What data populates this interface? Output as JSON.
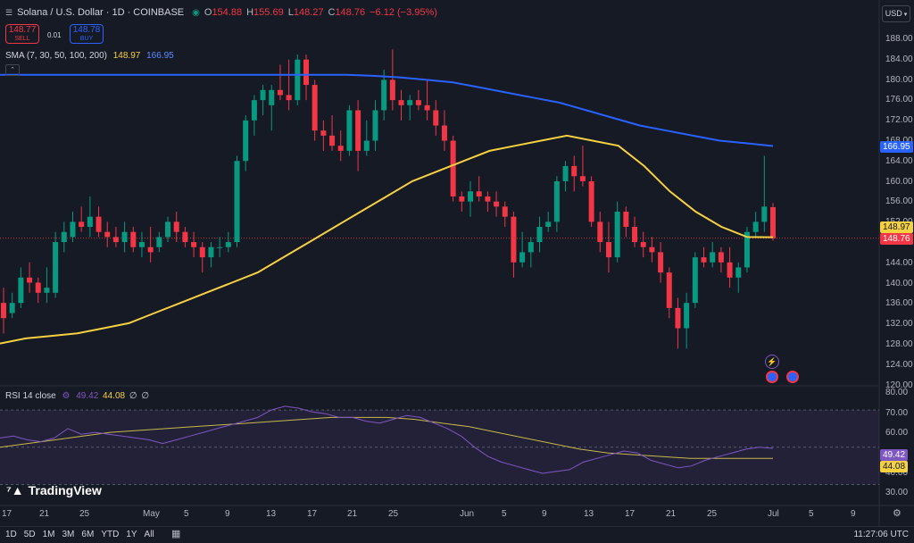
{
  "header": {
    "title": "Solana / U.S. Dollar · 1D · COINBASE",
    "ohlc": {
      "o_label": "O",
      "o": "154.88",
      "h_label": "H",
      "h": "155.69",
      "l_label": "L",
      "l": "148.27",
      "c_label": "C",
      "c": "148.76",
      "change": "−6.12 (−3.95%)"
    },
    "sell_price": "148.77",
    "sell_label": "SELL",
    "spread": "0.01",
    "buy_price": "148.78",
    "buy_label": "BUY",
    "currency": "USD"
  },
  "sma": {
    "label": "SMA (7, 30, 50, 100, 200)",
    "val1": "148.97",
    "val2": "166.95",
    "color1": "#f5d142",
    "color2": "#2962ff"
  },
  "rsi": {
    "label": "RSI 14 close",
    "val1": "49.42",
    "val2": "44.08",
    "null1": "∅",
    "null2": "∅",
    "line_color": "#7e57c2",
    "ma_color": "#c7b84a",
    "tag1": "49.42",
    "tag2": "44.08"
  },
  "price_axis": [
    "188.00",
    "184.00",
    "180.00",
    "176.00",
    "172.00",
    "168.00",
    "164.00",
    "160.00",
    "156.00",
    "152.00",
    "148.00",
    "144.00",
    "140.00",
    "136.00",
    "132.00",
    "128.00",
    "124.00",
    "120.00"
  ],
  "price_tags": {
    "sma1": "148.97",
    "sma2": "166.95",
    "last": "148.76"
  },
  "rsi_axis": [
    "80.00",
    "70.00",
    "60.00",
    "50.00",
    "40.00",
    "30.00"
  ],
  "time_axis": [
    "17",
    "21",
    "25",
    "May",
    "5",
    "9",
    "13",
    "17",
    "21",
    "25",
    "Jun",
    "5",
    "9",
    "13",
    "17",
    "21",
    "25",
    "Jul",
    "5",
    "9"
  ],
  "timeframes": [
    "1D",
    "5D",
    "1M",
    "3M",
    "6M",
    "YTD",
    "1Y",
    "All"
  ],
  "clock": "11:27:06 UTC",
  "logo_text": "TradingView",
  "colors": {
    "up": "#089981",
    "down": "#f23645",
    "bg": "#161a25"
  },
  "chart_data": {
    "type": "candlestick",
    "candles": [
      {
        "o": 136,
        "h": 139,
        "l": 130,
        "c": 133
      },
      {
        "o": 134,
        "h": 138,
        "l": 133,
        "c": 136
      },
      {
        "o": 136,
        "h": 143,
        "l": 135,
        "c": 141
      },
      {
        "o": 141,
        "h": 144,
        "l": 138,
        "c": 140
      },
      {
        "o": 140,
        "h": 141,
        "l": 136,
        "c": 138
      },
      {
        "o": 138,
        "h": 143,
        "l": 136,
        "c": 139
      },
      {
        "o": 138,
        "h": 150,
        "l": 137,
        "c": 148
      },
      {
        "o": 148,
        "h": 152,
        "l": 146,
        "c": 150
      },
      {
        "o": 149,
        "h": 154,
        "l": 148,
        "c": 152
      },
      {
        "o": 152,
        "h": 155,
        "l": 150,
        "c": 151
      },
      {
        "o": 151,
        "h": 157,
        "l": 149,
        "c": 153
      },
      {
        "o": 153,
        "h": 155,
        "l": 149,
        "c": 150
      },
      {
        "o": 150,
        "h": 152,
        "l": 147,
        "c": 149
      },
      {
        "o": 149,
        "h": 151,
        "l": 147,
        "c": 148
      },
      {
        "o": 148,
        "h": 152,
        "l": 146,
        "c": 150
      },
      {
        "o": 150,
        "h": 151,
        "l": 146,
        "c": 147
      },
      {
        "o": 147,
        "h": 150,
        "l": 145,
        "c": 148
      },
      {
        "o": 147,
        "h": 151,
        "l": 144,
        "c": 146
      },
      {
        "o": 147,
        "h": 150,
        "l": 146,
        "c": 149
      },
      {
        "o": 149,
        "h": 153,
        "l": 148,
        "c": 152
      },
      {
        "o": 152,
        "h": 154,
        "l": 148,
        "c": 150
      },
      {
        "o": 150,
        "h": 151,
        "l": 147,
        "c": 148
      },
      {
        "o": 148,
        "h": 150,
        "l": 145,
        "c": 147
      },
      {
        "o": 147,
        "h": 148,
        "l": 142,
        "c": 145
      },
      {
        "o": 145,
        "h": 148,
        "l": 143,
        "c": 147
      },
      {
        "o": 147,
        "h": 149,
        "l": 145,
        "c": 147
      },
      {
        "o": 147,
        "h": 150,
        "l": 146,
        "c": 148
      },
      {
        "o": 148,
        "h": 165,
        "l": 147,
        "c": 164
      },
      {
        "o": 164,
        "h": 173,
        "l": 162,
        "c": 172
      },
      {
        "o": 172,
        "h": 177,
        "l": 169,
        "c": 176
      },
      {
        "o": 176,
        "h": 179,
        "l": 173,
        "c": 178
      },
      {
        "o": 175,
        "h": 179,
        "l": 170,
        "c": 178
      },
      {
        "o": 178,
        "h": 183,
        "l": 176,
        "c": 177
      },
      {
        "o": 177,
        "h": 184,
        "l": 174,
        "c": 176
      },
      {
        "o": 176,
        "h": 185,
        "l": 175,
        "c": 184
      },
      {
        "o": 184,
        "h": 185,
        "l": 176,
        "c": 179
      },
      {
        "o": 179,
        "h": 180,
        "l": 168,
        "c": 170
      },
      {
        "o": 170,
        "h": 172,
        "l": 166,
        "c": 169
      },
      {
        "o": 169,
        "h": 173,
        "l": 166,
        "c": 167
      },
      {
        "o": 167,
        "h": 170,
        "l": 164,
        "c": 166
      },
      {
        "o": 166,
        "h": 175,
        "l": 165,
        "c": 174
      },
      {
        "o": 174,
        "h": 176,
        "l": 162,
        "c": 166
      },
      {
        "o": 166,
        "h": 172,
        "l": 165,
        "c": 168
      },
      {
        "o": 168,
        "h": 176,
        "l": 166,
        "c": 174
      },
      {
        "o": 174,
        "h": 182,
        "l": 172,
        "c": 180
      },
      {
        "o": 180,
        "h": 186,
        "l": 174,
        "c": 176
      },
      {
        "o": 176,
        "h": 178,
        "l": 172,
        "c": 175
      },
      {
        "o": 175,
        "h": 177,
        "l": 172,
        "c": 176
      },
      {
        "o": 176,
        "h": 178,
        "l": 174,
        "c": 175
      },
      {
        "o": 175,
        "h": 180,
        "l": 172,
        "c": 174
      },
      {
        "o": 174,
        "h": 176,
        "l": 169,
        "c": 171
      },
      {
        "o": 171,
        "h": 174,
        "l": 166,
        "c": 168
      },
      {
        "o": 168,
        "h": 169,
        "l": 156,
        "c": 157
      },
      {
        "o": 157,
        "h": 158,
        "l": 154,
        "c": 156
      },
      {
        "o": 156,
        "h": 160,
        "l": 153,
        "c": 158
      },
      {
        "o": 158,
        "h": 161,
        "l": 156,
        "c": 157
      },
      {
        "o": 157,
        "h": 158,
        "l": 154,
        "c": 156
      },
      {
        "o": 156,
        "h": 158,
        "l": 153,
        "c": 155
      },
      {
        "o": 155,
        "h": 156,
        "l": 151,
        "c": 153
      },
      {
        "o": 153,
        "h": 154,
        "l": 141,
        "c": 144
      },
      {
        "o": 144,
        "h": 150,
        "l": 143,
        "c": 146
      },
      {
        "o": 146,
        "h": 149,
        "l": 143,
        "c": 148
      },
      {
        "o": 148,
        "h": 153,
        "l": 146,
        "c": 151
      },
      {
        "o": 151,
        "h": 154,
        "l": 150,
        "c": 152
      },
      {
        "o": 152,
        "h": 161,
        "l": 150,
        "c": 160
      },
      {
        "o": 160,
        "h": 164,
        "l": 158,
        "c": 163
      },
      {
        "o": 163,
        "h": 165,
        "l": 158,
        "c": 161
      },
      {
        "o": 161,
        "h": 167,
        "l": 159,
        "c": 160
      },
      {
        "o": 160,
        "h": 161,
        "l": 151,
        "c": 152
      },
      {
        "o": 152,
        "h": 154,
        "l": 146,
        "c": 148
      },
      {
        "o": 148,
        "h": 152,
        "l": 142,
        "c": 145
      },
      {
        "o": 145,
        "h": 156,
        "l": 144,
        "c": 154
      },
      {
        "o": 154,
        "h": 155,
        "l": 149,
        "c": 151
      },
      {
        "o": 151,
        "h": 153,
        "l": 147,
        "c": 148
      },
      {
        "o": 148,
        "h": 150,
        "l": 145,
        "c": 147
      },
      {
        "o": 147,
        "h": 149,
        "l": 144,
        "c": 146
      },
      {
        "o": 146,
        "h": 148,
        "l": 140,
        "c": 142
      },
      {
        "o": 142,
        "h": 143,
        "l": 133,
        "c": 135
      },
      {
        "o": 135,
        "h": 137,
        "l": 127,
        "c": 131
      },
      {
        "o": 131,
        "h": 138,
        "l": 127,
        "c": 136
      },
      {
        "o": 136,
        "h": 146,
        "l": 135,
        "c": 145
      },
      {
        "o": 145,
        "h": 147,
        "l": 143,
        "c": 144
      },
      {
        "o": 144,
        "h": 148,
        "l": 143,
        "c": 146
      },
      {
        "o": 146,
        "h": 147,
        "l": 142,
        "c": 144
      },
      {
        "o": 144,
        "h": 147,
        "l": 139,
        "c": 141
      },
      {
        "o": 141,
        "h": 144,
        "l": 138,
        "c": 143
      },
      {
        "o": 143,
        "h": 151,
        "l": 142,
        "c": 150
      },
      {
        "o": 150,
        "h": 154,
        "l": 149,
        "c": 152
      },
      {
        "o": 152,
        "h": 165,
        "l": 150,
        "c": 155
      },
      {
        "o": 154.88,
        "h": 155.69,
        "l": 148.27,
        "c": 148.76
      }
    ],
    "sma_short": [
      128,
      129,
      129.5,
      130,
      131,
      132,
      134,
      136,
      138,
      140,
      142,
      145,
      148,
      151,
      154,
      157,
      160,
      162,
      164,
      166,
      167,
      168,
      169,
      168,
      167,
      163,
      158,
      154,
      151,
      149,
      148.97
    ],
    "sma_long": [
      181,
      181,
      181,
      181,
      181,
      181,
      181,
      181,
      181,
      181,
      181,
      181,
      181,
      181,
      180.8,
      180.5,
      180,
      179.5,
      178.5,
      177.5,
      176.5,
      175.5,
      174,
      172.5,
      171,
      170,
      169,
      168,
      167.5,
      166.95
    ],
    "rsi": [
      55,
      56,
      54,
      53,
      55,
      60,
      57,
      58,
      57,
      56,
      55,
      54,
      52,
      54,
      56,
      58,
      60,
      62,
      64,
      66,
      70,
      72,
      71,
      69,
      68,
      66,
      66,
      64,
      63,
      65,
      67,
      66,
      63,
      60,
      56,
      50,
      45,
      42,
      40,
      38,
      36,
      37,
      38,
      42,
      44,
      46,
      48,
      47,
      43,
      41,
      39,
      40,
      43,
      45,
      47,
      49,
      50,
      49.42
    ],
    "rsi_ma": [
      50,
      52,
      54,
      56,
      58,
      59,
      60,
      61,
      62,
      63,
      64,
      65,
      66,
      66,
      66,
      65,
      63,
      61,
      58,
      55,
      52,
      49,
      47,
      46,
      45,
      44,
      44,
      44,
      44.08
    ],
    "ylim": [
      120,
      190
    ],
    "rsi_ylim": [
      25,
      82
    ]
  }
}
